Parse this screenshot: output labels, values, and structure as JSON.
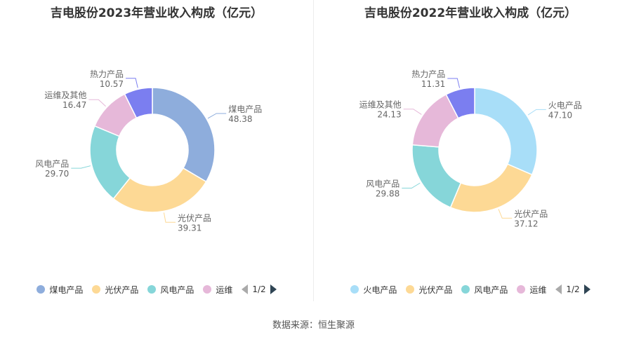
{
  "source": "数据来源：恒生聚源",
  "chart_data": [
    {
      "type": "pie",
      "title": "吉电股份2023年营业收入构成（亿元）",
      "slices": [
        {
          "name": "煤电产品",
          "value": 48.38,
          "color": "#8eaddc",
          "value_label": "48.38"
        },
        {
          "name": "光伏产品",
          "value": 39.31,
          "color": "#fdd995",
          "value_label": "39.31"
        },
        {
          "name": "风电产品",
          "value": 29.7,
          "color": "#86d6d9",
          "value_label": "29.70"
        },
        {
          "name": "运维及其他",
          "value": 16.47,
          "color": "#e6b8d9",
          "value_label": "16.47"
        },
        {
          "name": "热力产品",
          "value": 10.57,
          "color": "#7b7ef0",
          "value_label": "10.57"
        }
      ],
      "legend": [
        "煤电产品",
        "光伏产品",
        "风电产品",
        "运维"
      ],
      "legend_colors": [
        "#8eaddc",
        "#fdd995",
        "#86d6d9",
        "#e6b8d9"
      ],
      "page_indicator": "1/2",
      "legend_position": "bottom"
    },
    {
      "type": "pie",
      "title": "吉电股份2022年营业收入构成（亿元）",
      "slices": [
        {
          "name": "火电产品",
          "value": 47.1,
          "color": "#a8def8",
          "value_label": "47.10"
        },
        {
          "name": "光伏产品",
          "value": 37.12,
          "color": "#fdd995",
          "value_label": "37.12"
        },
        {
          "name": "风电产品",
          "value": 29.88,
          "color": "#86d6d9",
          "value_label": "29.88"
        },
        {
          "name": "运维及其他",
          "value": 24.13,
          "color": "#e6b8d9",
          "value_label": "24.13"
        },
        {
          "name": "热力产品",
          "value": 11.31,
          "color": "#7b7ef0",
          "value_label": "11.31"
        }
      ],
      "legend": [
        "火电产品",
        "光伏产品",
        "风电产品",
        "运维"
      ],
      "legend_colors": [
        "#a8def8",
        "#fdd995",
        "#86d6d9",
        "#e6b8d9"
      ],
      "page_indicator": "1/2",
      "legend_position": "bottom"
    }
  ]
}
